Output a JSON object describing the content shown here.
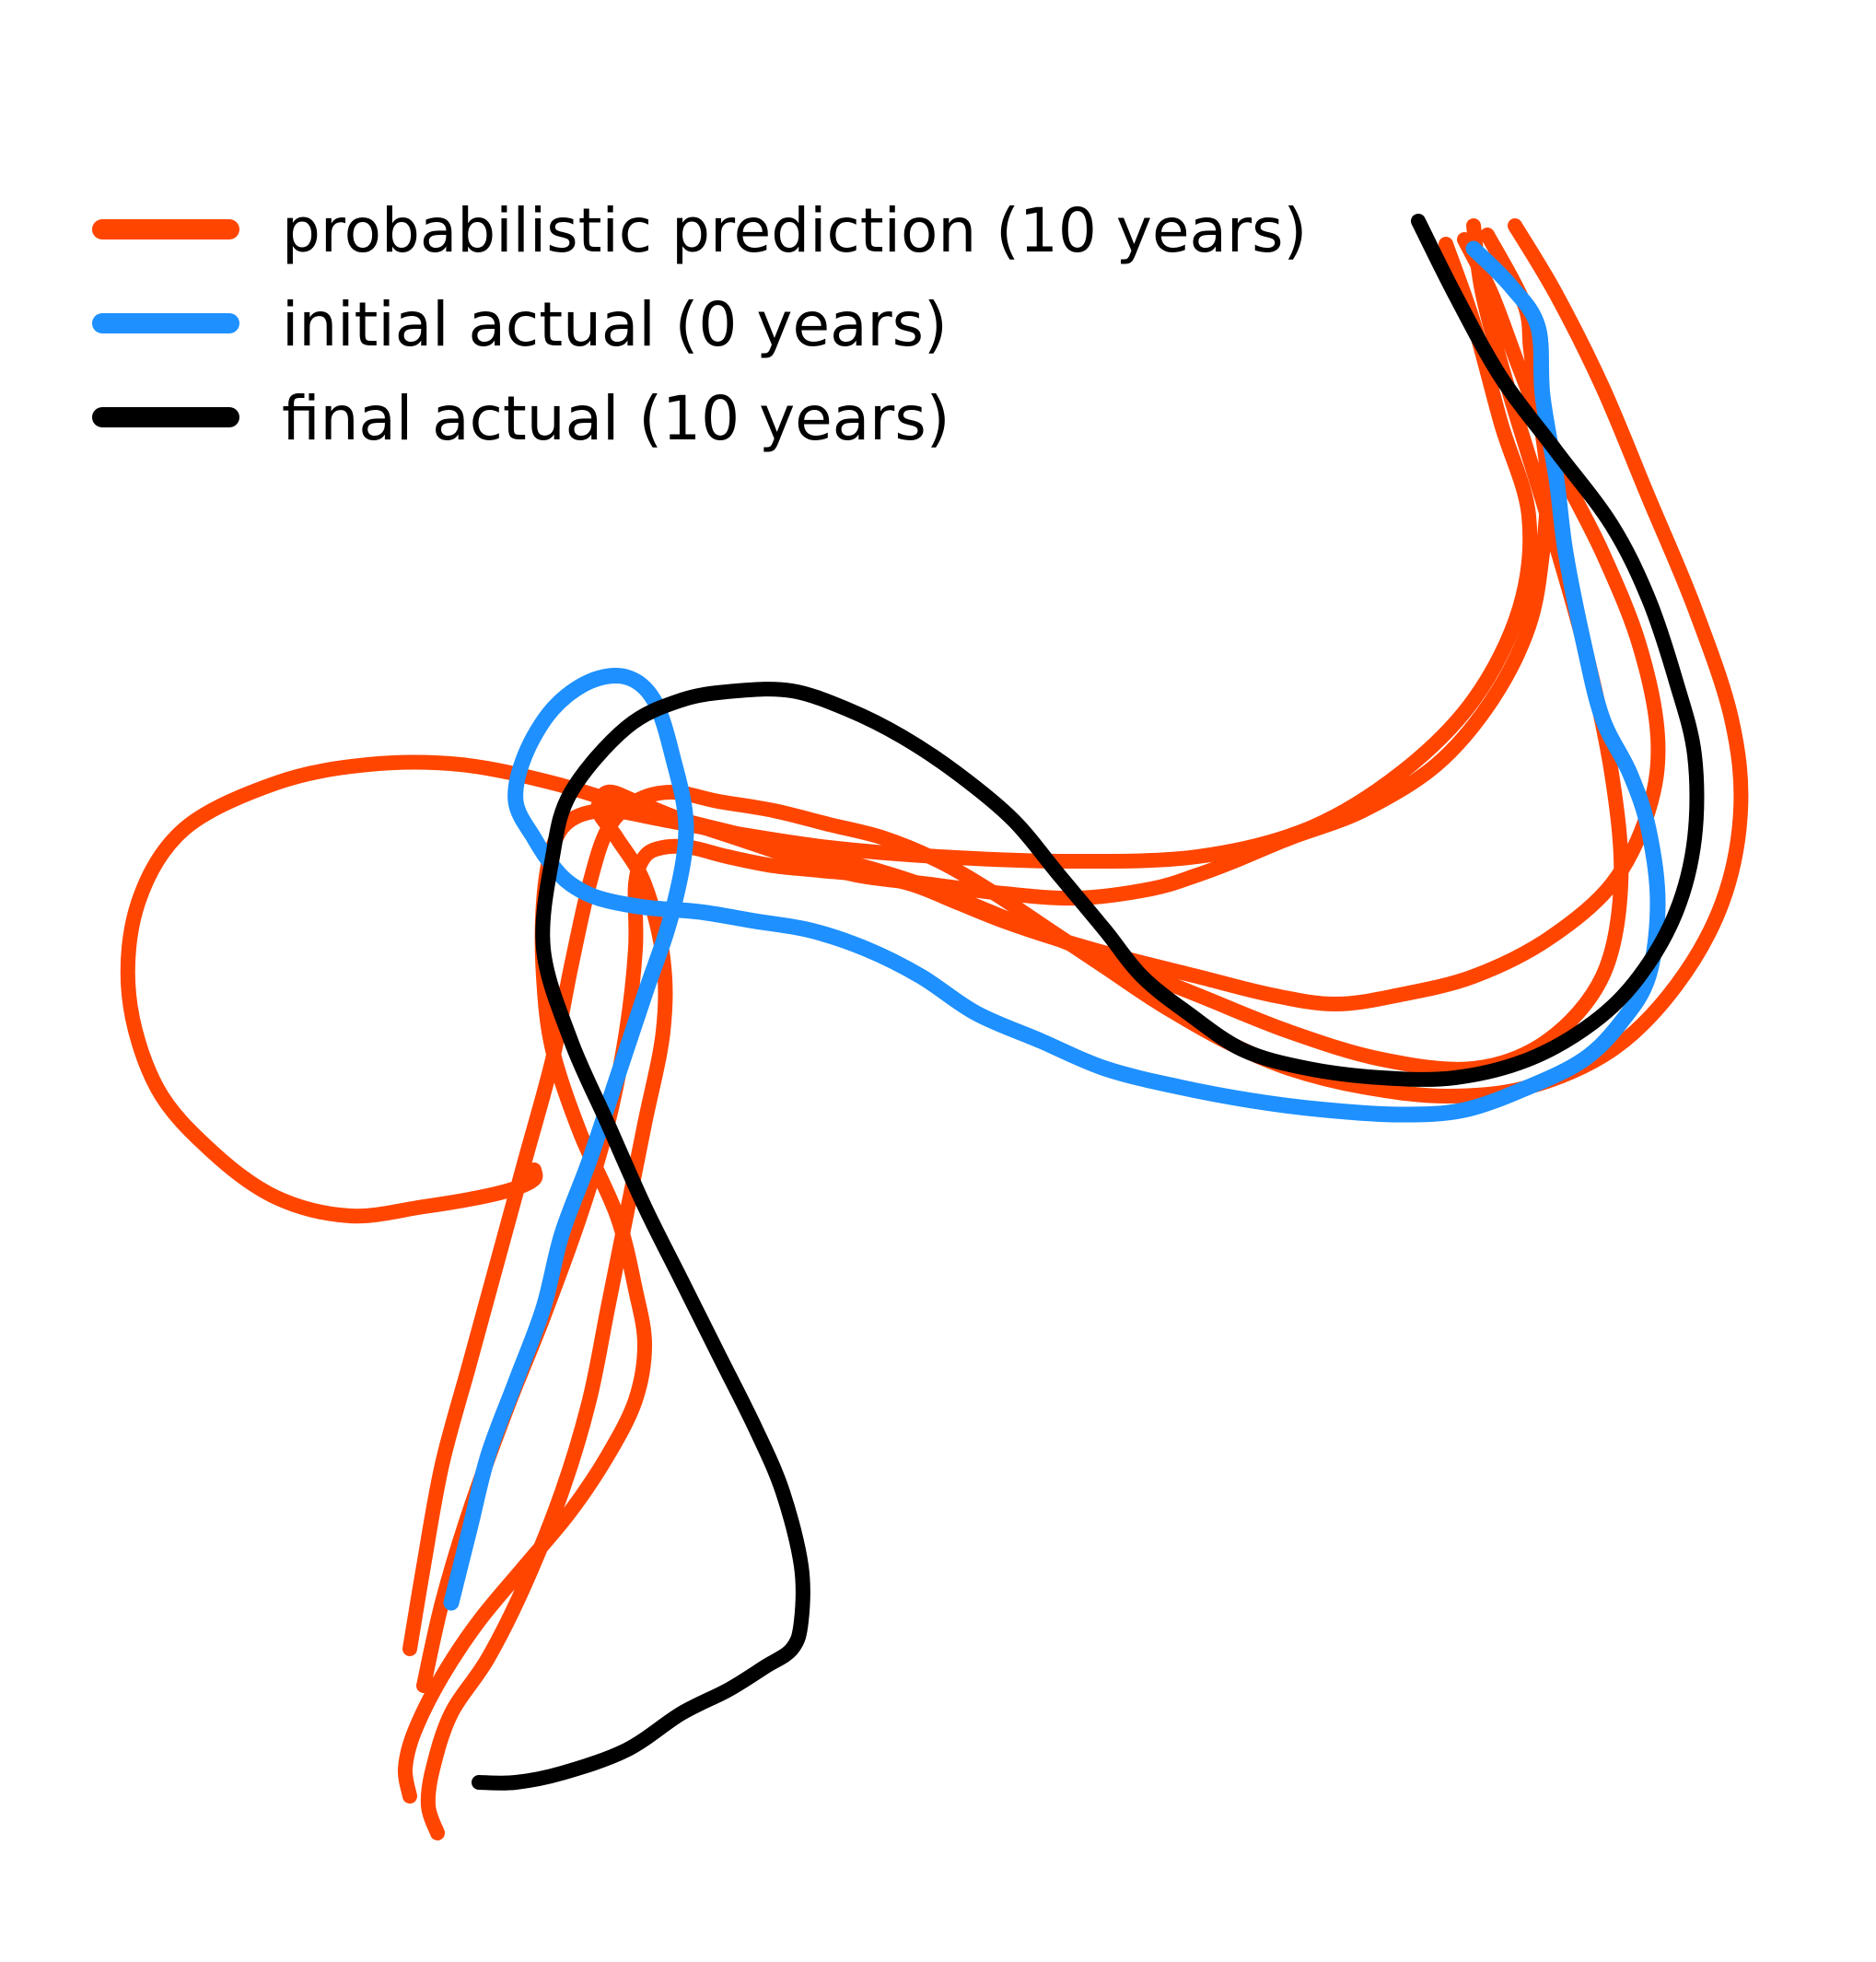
{
  "legend": {
    "items": [
      {
        "key": "prediction",
        "label": "probabilistic prediction (10 years)",
        "color": "#ff4500"
      },
      {
        "key": "initial",
        "label": "initial actual (0 years)",
        "color": "#1e90ff"
      },
      {
        "key": "final",
        "label": "final actual (10 years)",
        "color": "#000000"
      }
    ]
  },
  "colors": {
    "prediction": "#ff4500",
    "initial": "#1e90ff",
    "final": "#000000",
    "background": "#ffffff"
  },
  "chart_data": {
    "type": "line",
    "title": "",
    "xlabel": "",
    "ylabel": "",
    "axes_visible": false,
    "grid": false,
    "legend_position": "top-left",
    "series": [
      {
        "name": "probabilistic prediction (10 years)",
        "color": "#ff4500",
        "role": "prediction",
        "x": [
          1615,
          1655,
          1662,
          1670,
          1680,
          1675,
          1660,
          1620,
          1560,
          1480,
          1400,
          1340,
          1300,
          1250,
          1170,
          1090,
          1010,
          930,
          860,
          800,
          740,
          690,
          660,
          650,
          670,
          700,
          720,
          720,
          700,
          680,
          660,
          640,
          610,
          570,
          530,
          490,
          470,
          465,
          475
        ],
        "y": [
          255,
          330,
          380,
          440,
          520,
          600,
          680,
          760,
          830,
          880,
          910,
          935,
          950,
          965,
          975,
          970,
          960,
          950,
          930,
          910,
          890,
          870,
          860,
          880,
          910,
          960,
          1040,
          1120,
          1220,
          1320,
          1420,
          1520,
          1620,
          1720,
          1800,
          1860,
          1920,
          1960,
          1990
        ]
      },
      {
        "name": "probabilistic prediction (10 years)",
        "color": "#ff4500",
        "role": "prediction",
        "x": [
          1590,
          1620,
          1650,
          1690,
          1740,
          1780,
          1800,
          1790,
          1750,
          1680,
          1600,
          1520,
          1450,
          1380,
          1300,
          1220,
          1150,
          1090,
          1040,
          990,
          940,
          890,
          840,
          790,
          750,
          720,
          700,
          690,
          690,
          680,
          660,
          630,
          590,
          550,
          510,
          480,
          460
        ],
        "y": [
          260,
          320,
          400,
          500,
          600,
          700,
          800,
          880,
          960,
          1020,
          1060,
          1080,
          1090,
          1080,
          1060,
          1040,
          1020,
          1000,
          980,
          960,
          950,
          945,
          940,
          930,
          920,
          920,
          930,
          960,
          1030,
          1120,
          1220,
          1320,
          1430,
          1530,
          1640,
          1740,
          1830
        ]
      },
      {
        "name": "probabilistic prediction (10 years)",
        "color": "#ff4500",
        "role": "prediction",
        "x": [
          1645,
          1690,
          1740,
          1790,
          1840,
          1880,
          1890,
          1870,
          1820,
          1750,
          1660,
          1570,
          1480,
          1400,
          1330,
          1260,
          1200,
          1140,
          1080,
          1020,
          960,
          900,
          840,
          780,
          730,
          690,
          660,
          640,
          620,
          600,
          570,
          540,
          510,
          480,
          460,
          445
        ],
        "y": [
          245,
          320,
          420,
          540,
          660,
          780,
          880,
          980,
          1070,
          1140,
          1180,
          1190,
          1180,
          1160,
          1130,
          1090,
          1050,
          1010,
          970,
          935,
          910,
          895,
          880,
          870,
          860,
          870,
          900,
          960,
          1050,
          1150,
          1260,
          1370,
          1480,
          1590,
          1700,
          1790
        ]
      },
      {
        "name": "probabilistic prediction (10 years)",
        "color": "#ff4500",
        "role": "prediction",
        "x": [
          1600,
          1610,
          1640,
          1680,
          1720,
          1750,
          1760,
          1740,
          1680,
          1600,
          1500,
          1400,
          1300,
          1200,
          1100,
          1000,
          900,
          800,
          700,
          600,
          500,
          400,
          300,
          200,
          150,
          140,
          170,
          230,
          300,
          380,
          460,
          520,
          560,
          580,
          580
        ],
        "y": [
          245,
          320,
          430,
          560,
          700,
          840,
          960,
          1060,
          1130,
          1160,
          1150,
          1120,
          1080,
          1040,
          1000,
          960,
          930,
          905,
          880,
          850,
          830,
          830,
          850,
          900,
          980,
          1080,
          1180,
          1250,
          1300,
          1320,
          1310,
          1300,
          1290,
          1280,
          1270
        ]
      },
      {
        "name": "probabilistic prediction (10 years)",
        "color": "#ff4500",
        "role": "prediction",
        "x": [
          1570,
          1600,
          1630,
          1660,
          1650,
          1600,
          1520,
          1420,
          1300,
          1160,
          1020,
          900,
          800,
          720,
          660,
          620,
          600,
          590,
          590,
          600,
          630,
          670,
          690,
          700,
          690,
          660,
          620,
          570,
          520,
          480,
          450,
          440,
          445
        ],
        "y": [
          265,
          350,
          460,
          560,
          660,
          760,
          840,
          900,
          930,
          935,
          930,
          920,
          905,
          890,
          880,
          890,
          920,
          980,
          1060,
          1140,
          1230,
          1320,
          1400,
          1460,
          1520,
          1580,
          1640,
          1700,
          1760,
          1820,
          1880,
          1920,
          1950
        ]
      },
      {
        "name": "initial actual (0 years)",
        "color": "#1e90ff",
        "role": "initial",
        "x": [
          1600,
          1640,
          1670,
          1675,
          1690,
          1700,
          1720,
          1740,
          1770,
          1790,
          1800,
          1790,
          1760,
          1720,
          1660,
          1590,
          1520,
          1440,
          1360,
          1280,
          1200,
          1130,
          1060,
          1000,
          940,
          880,
          820,
          760,
          700,
          650,
          620,
          600,
          580,
          560,
          570,
          600,
          640,
          680,
          710,
          730,
          745,
          730,
          700,
          670,
          640,
          610,
          590,
          560,
          530,
          510,
          490
        ],
        "y": [
          270,
          310,
          355,
          430,
          520,
          600,
          700,
          780,
          840,
          900,
          980,
          1060,
          1110,
          1150,
          1180,
          1205,
          1210,
          1205,
          1195,
          1180,
          1160,
          1130,
          1100,
          1060,
          1030,
          1010,
          1000,
          990,
          985,
          975,
          960,
          940,
          910,
          870,
          820,
          770,
          740,
          735,
          760,
          820,
          900,
          990,
          1080,
          1170,
          1260,
          1340,
          1420,
          1500,
          1580,
          1660,
          1740
        ]
      },
      {
        "name": "final actual (10 years)",
        "color": "#000000",
        "role": "final",
        "x": [
          1540,
          1580,
          1630,
          1690,
          1750,
          1790,
          1820,
          1840,
          1840,
          1820,
          1780,
          1730,
          1660,
          1580,
          1500,
          1420,
          1350,
          1290,
          1240,
          1200,
          1150,
          1100,
          1040,
          980,
          920,
          860,
          800,
          740,
          680,
          620,
          600,
          590,
          620,
          660,
          700,
          740,
          780,
          820,
          850,
          870,
          870,
          860,
          830,
          790,
          740,
          680,
          610,
          560,
          520
        ],
        "y": [
          240,
          320,
          410,
          490,
          570,
          650,
          740,
          820,
          910,
          990,
          1060,
          1110,
          1150,
          1170,
          1170,
          1160,
          1140,
          1100,
          1060,
          1010,
          950,
          890,
          840,
          800,
          770,
          750,
          750,
          760,
          790,
          860,
          930,
          1030,
          1130,
          1220,
          1310,
          1390,
          1470,
          1550,
          1620,
          1700,
          1760,
          1790,
          1810,
          1835,
          1860,
          1900,
          1925,
          1935,
          1935
        ]
      }
    ]
  }
}
